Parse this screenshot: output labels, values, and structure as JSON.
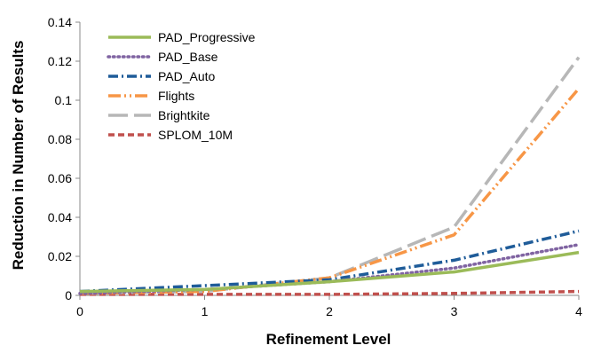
{
  "chart_data": {
    "type": "line",
    "xlabel": "Refinement Level",
    "ylabel": "Reduction in Number of Results",
    "xlim": [
      0,
      4
    ],
    "ylim": [
      0,
      0.14
    ],
    "x": [
      0,
      1,
      2,
      3,
      4
    ],
    "xticks": [
      "0",
      "1",
      "2",
      "3",
      "4"
    ],
    "yticks": [
      "0",
      "0.02",
      "0.04",
      "0.06",
      "0.08",
      "0.1",
      "0.12",
      "0.14"
    ],
    "grid": false,
    "legend_position": "top-left",
    "series": [
      {
        "name": "PAD_Progressive",
        "values": [
          0.002,
          0.003,
          0.007,
          0.012,
          0.022
        ],
        "color": "#9bbb59",
        "style": "solid"
      },
      {
        "name": "PAD_Base",
        "values": [
          0.001,
          0.003,
          0.007,
          0.014,
          0.026
        ],
        "color": "#8064a2",
        "style": "dotted"
      },
      {
        "name": "PAD_Auto",
        "values": [
          0.002,
          0.005,
          0.008,
          0.018,
          0.033
        ],
        "color": "#1f5c99",
        "style": "dash-dot"
      },
      {
        "name": "Flights",
        "values": [
          0.001,
          0.002,
          0.009,
          0.031,
          0.106
        ],
        "color": "#f79646",
        "style": "dash-dot-dot"
      },
      {
        "name": "Brightkite",
        "values": [
          0.001,
          0.002,
          0.009,
          0.035,
          0.122
        ],
        "color": "#b7b7b7",
        "style": "long-dash"
      },
      {
        "name": "SPLOM_10M",
        "values": [
          0.0005,
          0.0005,
          0.0005,
          0.001,
          0.002
        ],
        "color": "#c0504d",
        "style": "short-dash"
      }
    ]
  }
}
